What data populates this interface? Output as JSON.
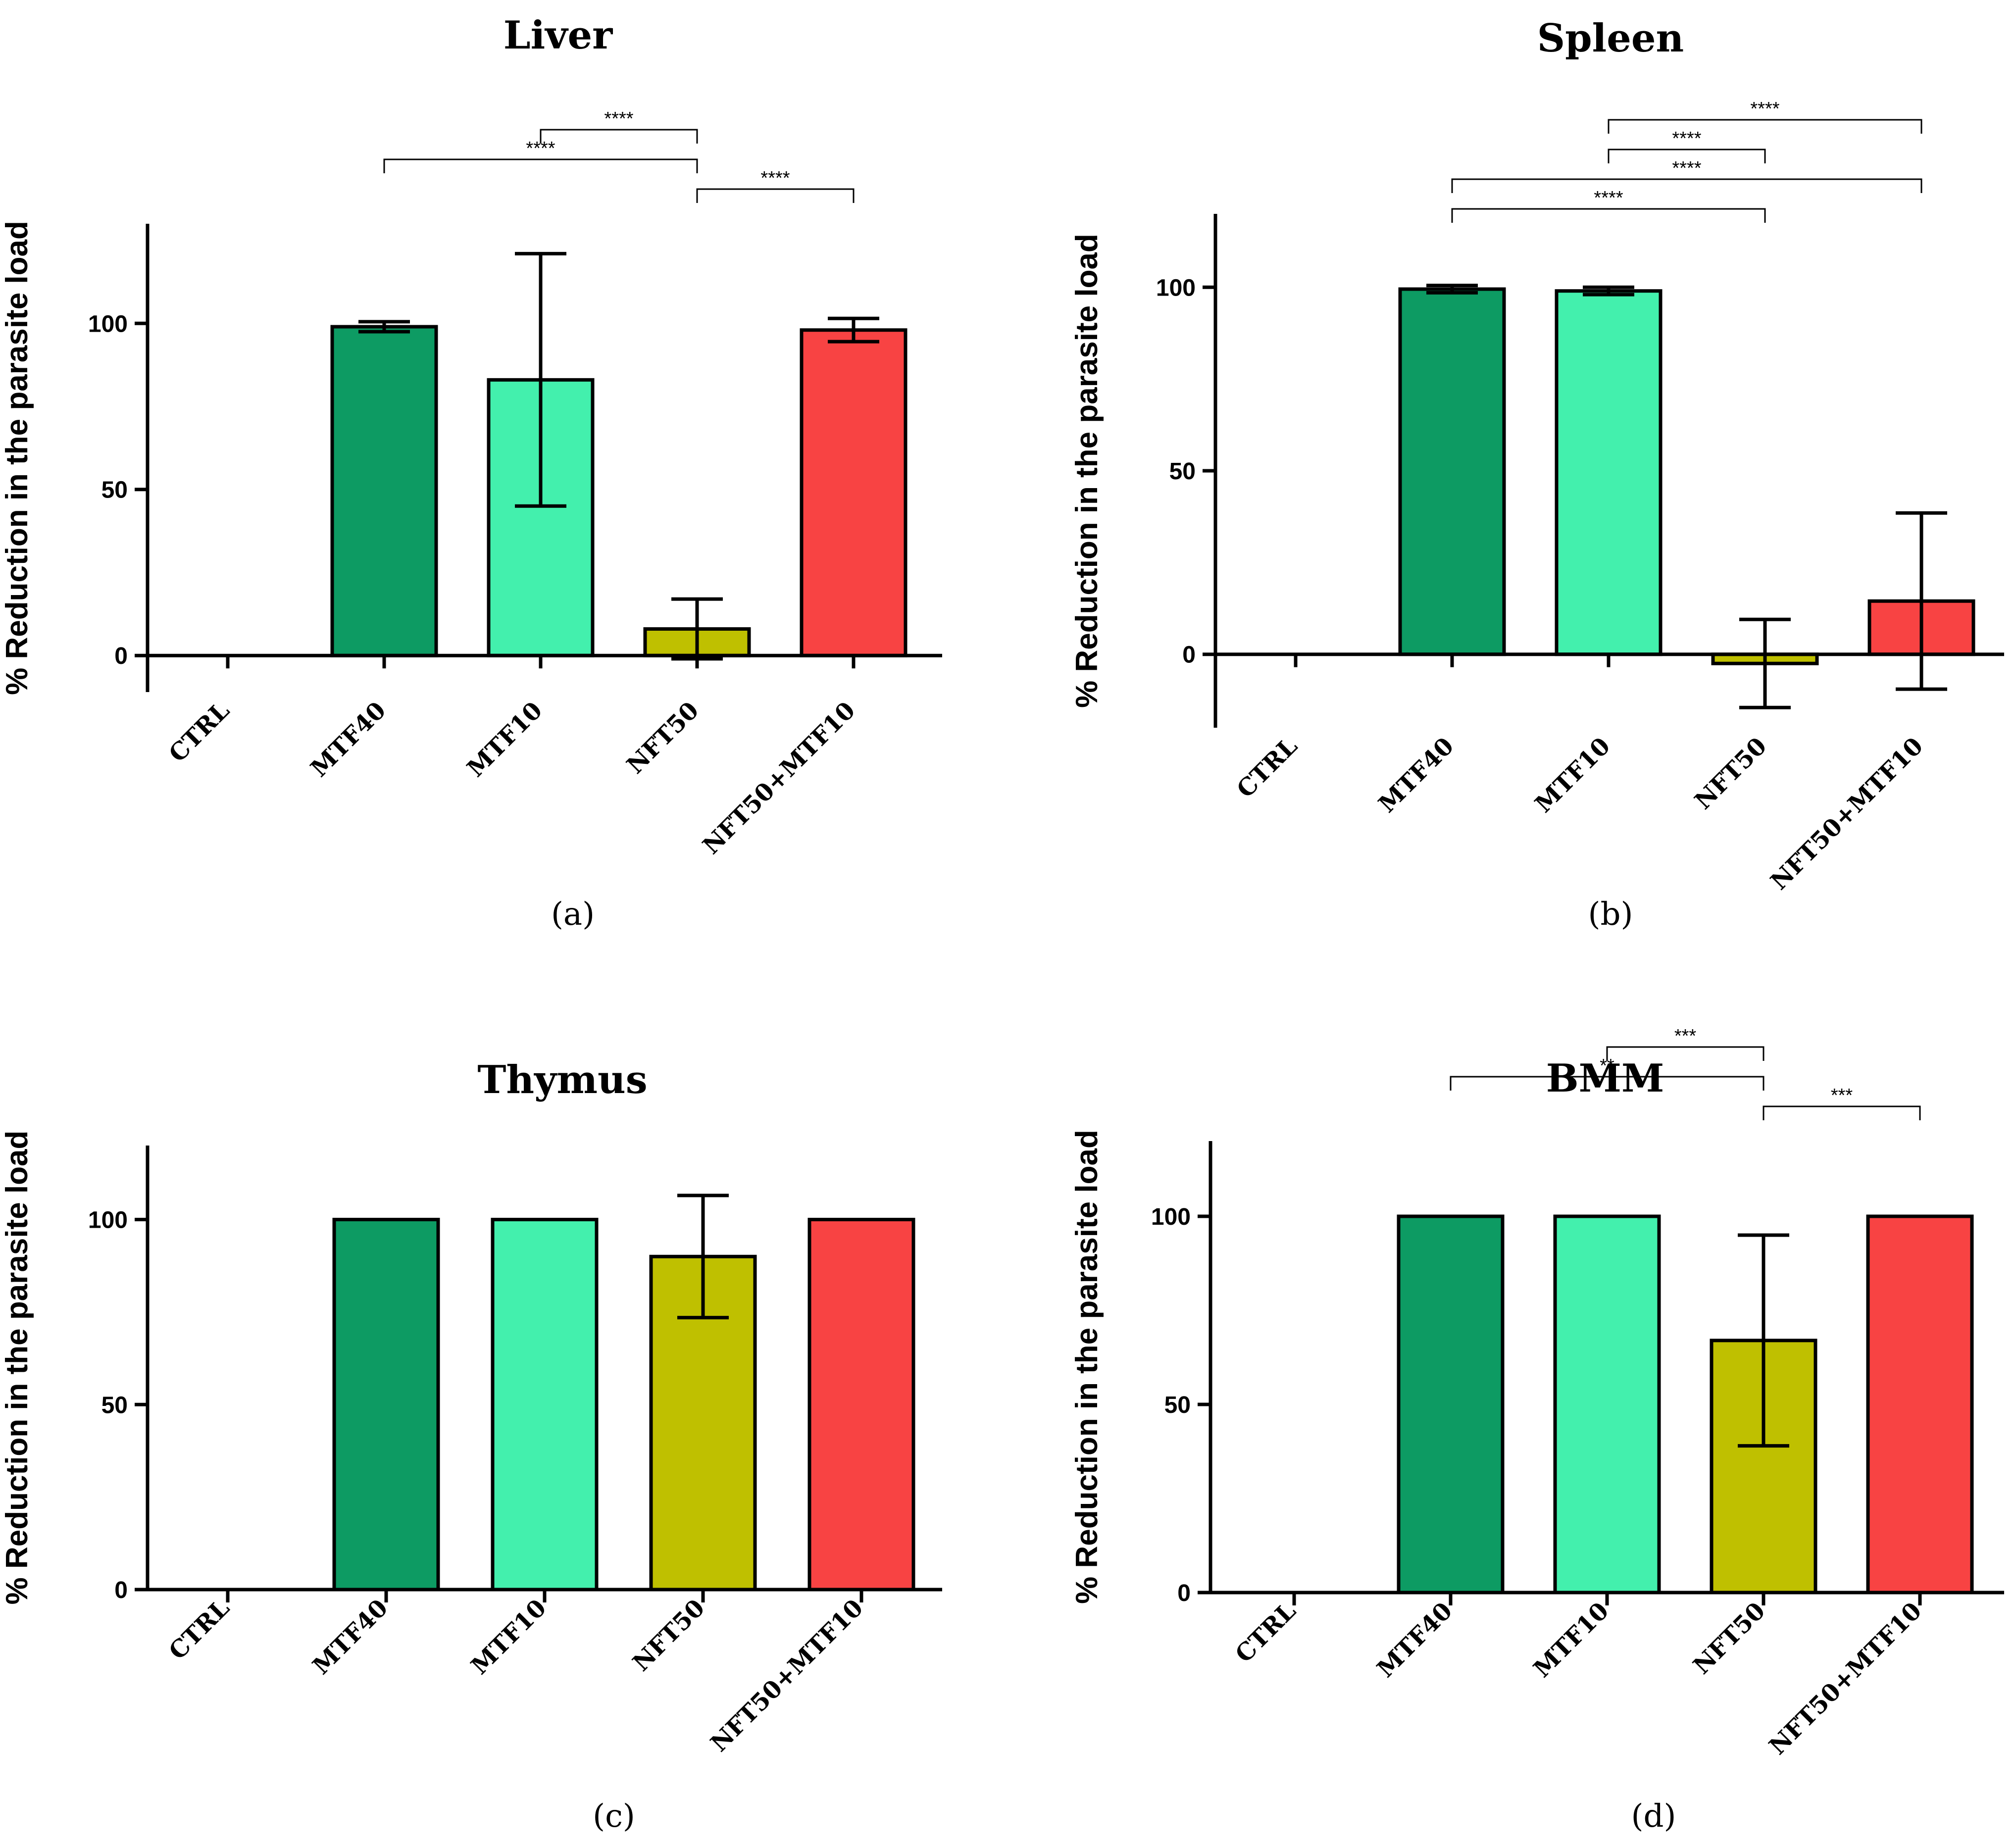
{
  "chart_data": [
    {
      "type": "bar",
      "title": "Liver",
      "caption": "(a)",
      "ylabel": "% Reduction in the parasite load",
      "xlabel": "",
      "categories": [
        "CTRL",
        "MTF40",
        "MTF10",
        "NFT50",
        "NFT50+MTF10"
      ],
      "values": [
        0,
        99,
        83,
        8,
        98
      ],
      "errors": [
        0,
        1.5,
        38,
        9,
        3.5
      ],
      "colors": [
        "#0d9b63",
        "#0d9b63",
        "#43f0ad",
        "#bfc000",
        "#f84343"
      ],
      "ylim": [
        -11,
        130
      ],
      "yticks": [
        0,
        50,
        100
      ],
      "grid": false,
      "significance": [
        {
          "from": "MTF10",
          "to": "NFT50",
          "label": "****"
        },
        {
          "from": "MTF40",
          "to": "NFT50",
          "label": "****"
        },
        {
          "from": "NFT50",
          "to": "NFT50+MTF10",
          "label": "****"
        }
      ]
    },
    {
      "type": "bar",
      "title": "Spleen",
      "caption": "(b)",
      "ylabel": "% Reduction in the parasite load",
      "xlabel": "",
      "categories": [
        "CTRL",
        "MTF40",
        "MTF10",
        "NFT50",
        "NFT50+MTF10"
      ],
      "values": [
        0,
        99.5,
        99,
        -2.5,
        14.5
      ],
      "errors": [
        0,
        1,
        1,
        12,
        24
      ],
      "colors": [
        "#0d9b63",
        "#0d9b63",
        "#43f0ad",
        "#bfc000",
        "#f84343"
      ],
      "ylim": [
        -20,
        120
      ],
      "yticks": [
        0,
        50,
        100
      ],
      "grid": false,
      "significance": [
        {
          "from": "MTF10",
          "to": "NFT50+MTF10",
          "label": "****"
        },
        {
          "from": "MTF10",
          "to": "NFT50",
          "label": "****"
        },
        {
          "from": "MTF40",
          "to": "NFT50+MTF10",
          "label": "****"
        },
        {
          "from": "MTF40",
          "to": "NFT50",
          "label": "****"
        }
      ]
    },
    {
      "type": "bar",
      "title": "Thymus",
      "caption": "(c)",
      "ylabel": "% Reduction in the parasite load",
      "xlabel": "",
      "categories": [
        "CTRL",
        "MTF40",
        "MTF10",
        "NFT50",
        "NFT50+MTF10"
      ],
      "values": [
        0,
        100,
        100,
        90,
        100
      ],
      "errors": [
        0,
        0,
        0,
        16.5,
        0
      ],
      "colors": [
        "#0d9b63",
        "#0d9b63",
        "#43f0ad",
        "#bfc000",
        "#f84343"
      ],
      "ylim": [
        0,
        120
      ],
      "yticks": [
        0,
        50,
        100
      ],
      "grid": false,
      "significance": []
    },
    {
      "type": "bar",
      "title": "BMM",
      "caption": "(d)",
      "ylabel": "% Reduction in the parasite load",
      "xlabel": "",
      "categories": [
        "CTRL",
        "MTF40",
        "MTF10",
        "NFT50",
        "NFT50+MTF10"
      ],
      "values": [
        0,
        100,
        100,
        67,
        100
      ],
      "errors": [
        0,
        0,
        0,
        28,
        0
      ],
      "colors": [
        "#0d9b63",
        "#0d9b63",
        "#43f0ad",
        "#bfc000",
        "#f84343"
      ],
      "ylim": [
        0,
        120
      ],
      "yticks": [
        0,
        50,
        100
      ],
      "grid": false,
      "significance": [
        {
          "from": "MTF10",
          "to": "NFT50",
          "label": "***"
        },
        {
          "from": "MTF40",
          "to": "NFT50",
          "label": "**"
        },
        {
          "from": "NFT50",
          "to": "NFT50+MTF10",
          "label": "***"
        }
      ]
    }
  ]
}
